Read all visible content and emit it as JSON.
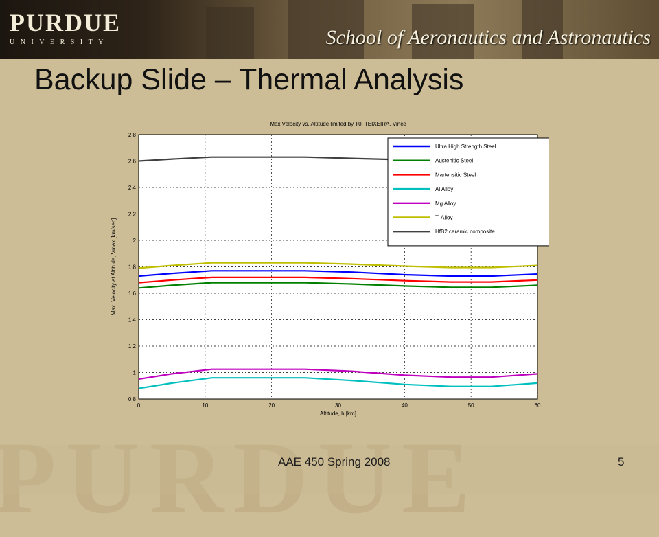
{
  "header": {
    "brand_name": "PURDUE",
    "brand_sub": "UNIVERSITY",
    "school": "School of Aeronautics and Astronautics"
  },
  "slide": {
    "title": "Backup Slide – Thermal Analysis",
    "footer": "AAE 450 Spring 2008",
    "page_number": "5",
    "watermark": "PURDUE"
  },
  "chart_data": {
    "type": "line",
    "title": "Max Velocity vs. Altitude limited by T0, TEIXEIRA, Vince",
    "xlabel": "Altitude, h [km]",
    "ylabel": "Max. Velocity at Altitude, Vmax [km/sec]",
    "xlim": [
      0,
      60
    ],
    "ylim": [
      0.8,
      2.8
    ],
    "xticks": [
      0,
      10,
      20,
      30,
      40,
      50,
      60
    ],
    "yticks": [
      0.8,
      1,
      1.2,
      1.4,
      1.6,
      1.8,
      2,
      2.2,
      2.4,
      2.6,
      2.8
    ],
    "grid": true,
    "legend_position": "top-right",
    "x": [
      0,
      5,
      11,
      20,
      25,
      32,
      40,
      47,
      53,
      60
    ],
    "series": [
      {
        "name": "Ultra High Strength Steel",
        "color": "#0000ff",
        "values": [
          1.73,
          1.75,
          1.77,
          1.77,
          1.77,
          1.76,
          1.74,
          1.73,
          1.73,
          1.745
        ]
      },
      {
        "name": "Austenitic Steel",
        "color": "#008000",
        "values": [
          1.64,
          1.66,
          1.68,
          1.68,
          1.68,
          1.67,
          1.655,
          1.645,
          1.645,
          1.66
        ]
      },
      {
        "name": "Martensitic Steel",
        "color": "#ff0000",
        "values": [
          1.68,
          1.7,
          1.72,
          1.72,
          1.72,
          1.71,
          1.695,
          1.685,
          1.685,
          1.7
        ]
      },
      {
        "name": "Al Alloy",
        "color": "#00bfbf",
        "values": [
          0.88,
          0.92,
          0.96,
          0.96,
          0.96,
          0.94,
          0.91,
          0.895,
          0.895,
          0.92
        ]
      },
      {
        "name": "Mg Alloy",
        "color": "#bf00bf",
        "values": [
          0.95,
          0.99,
          1.025,
          1.025,
          1.025,
          1.01,
          0.98,
          0.965,
          0.965,
          0.99
        ]
      },
      {
        "name": "Ti Alloy",
        "color": "#bfbf00",
        "values": [
          1.79,
          1.81,
          1.83,
          1.83,
          1.83,
          1.82,
          1.805,
          1.795,
          1.795,
          1.81
        ]
      },
      {
        "name": "HfB2 ceramic composite",
        "color": "#404040",
        "values": [
          2.6,
          2.615,
          2.63,
          2.63,
          2.63,
          2.62,
          2.61,
          2.605,
          2.605,
          2.615
        ]
      }
    ]
  }
}
